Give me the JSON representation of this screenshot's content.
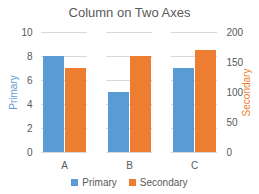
{
  "chart_data": {
    "type": "bar",
    "title": "Column on Two Axes",
    "categories": [
      "A",
      "B",
      "C"
    ],
    "series": [
      {
        "name": "Primary",
        "color": "#5b9bd5",
        "values": [
          8,
          5,
          7
        ]
      },
      {
        "name": "Secondary",
        "color": "#ed7d31",
        "values": [
          140,
          160,
          170
        ],
        "axis": "y2"
      }
    ],
    "y_label": "Primary",
    "y2_label": "Secondary",
    "ylim": [
      0,
      10
    ],
    "yticks": [
      0,
      2,
      4,
      6,
      8,
      10
    ],
    "y2lim": [
      0,
      200
    ],
    "y2ticks": [
      0,
      50,
      100,
      150,
      200
    ],
    "grid": true,
    "legend": "bottom"
  }
}
